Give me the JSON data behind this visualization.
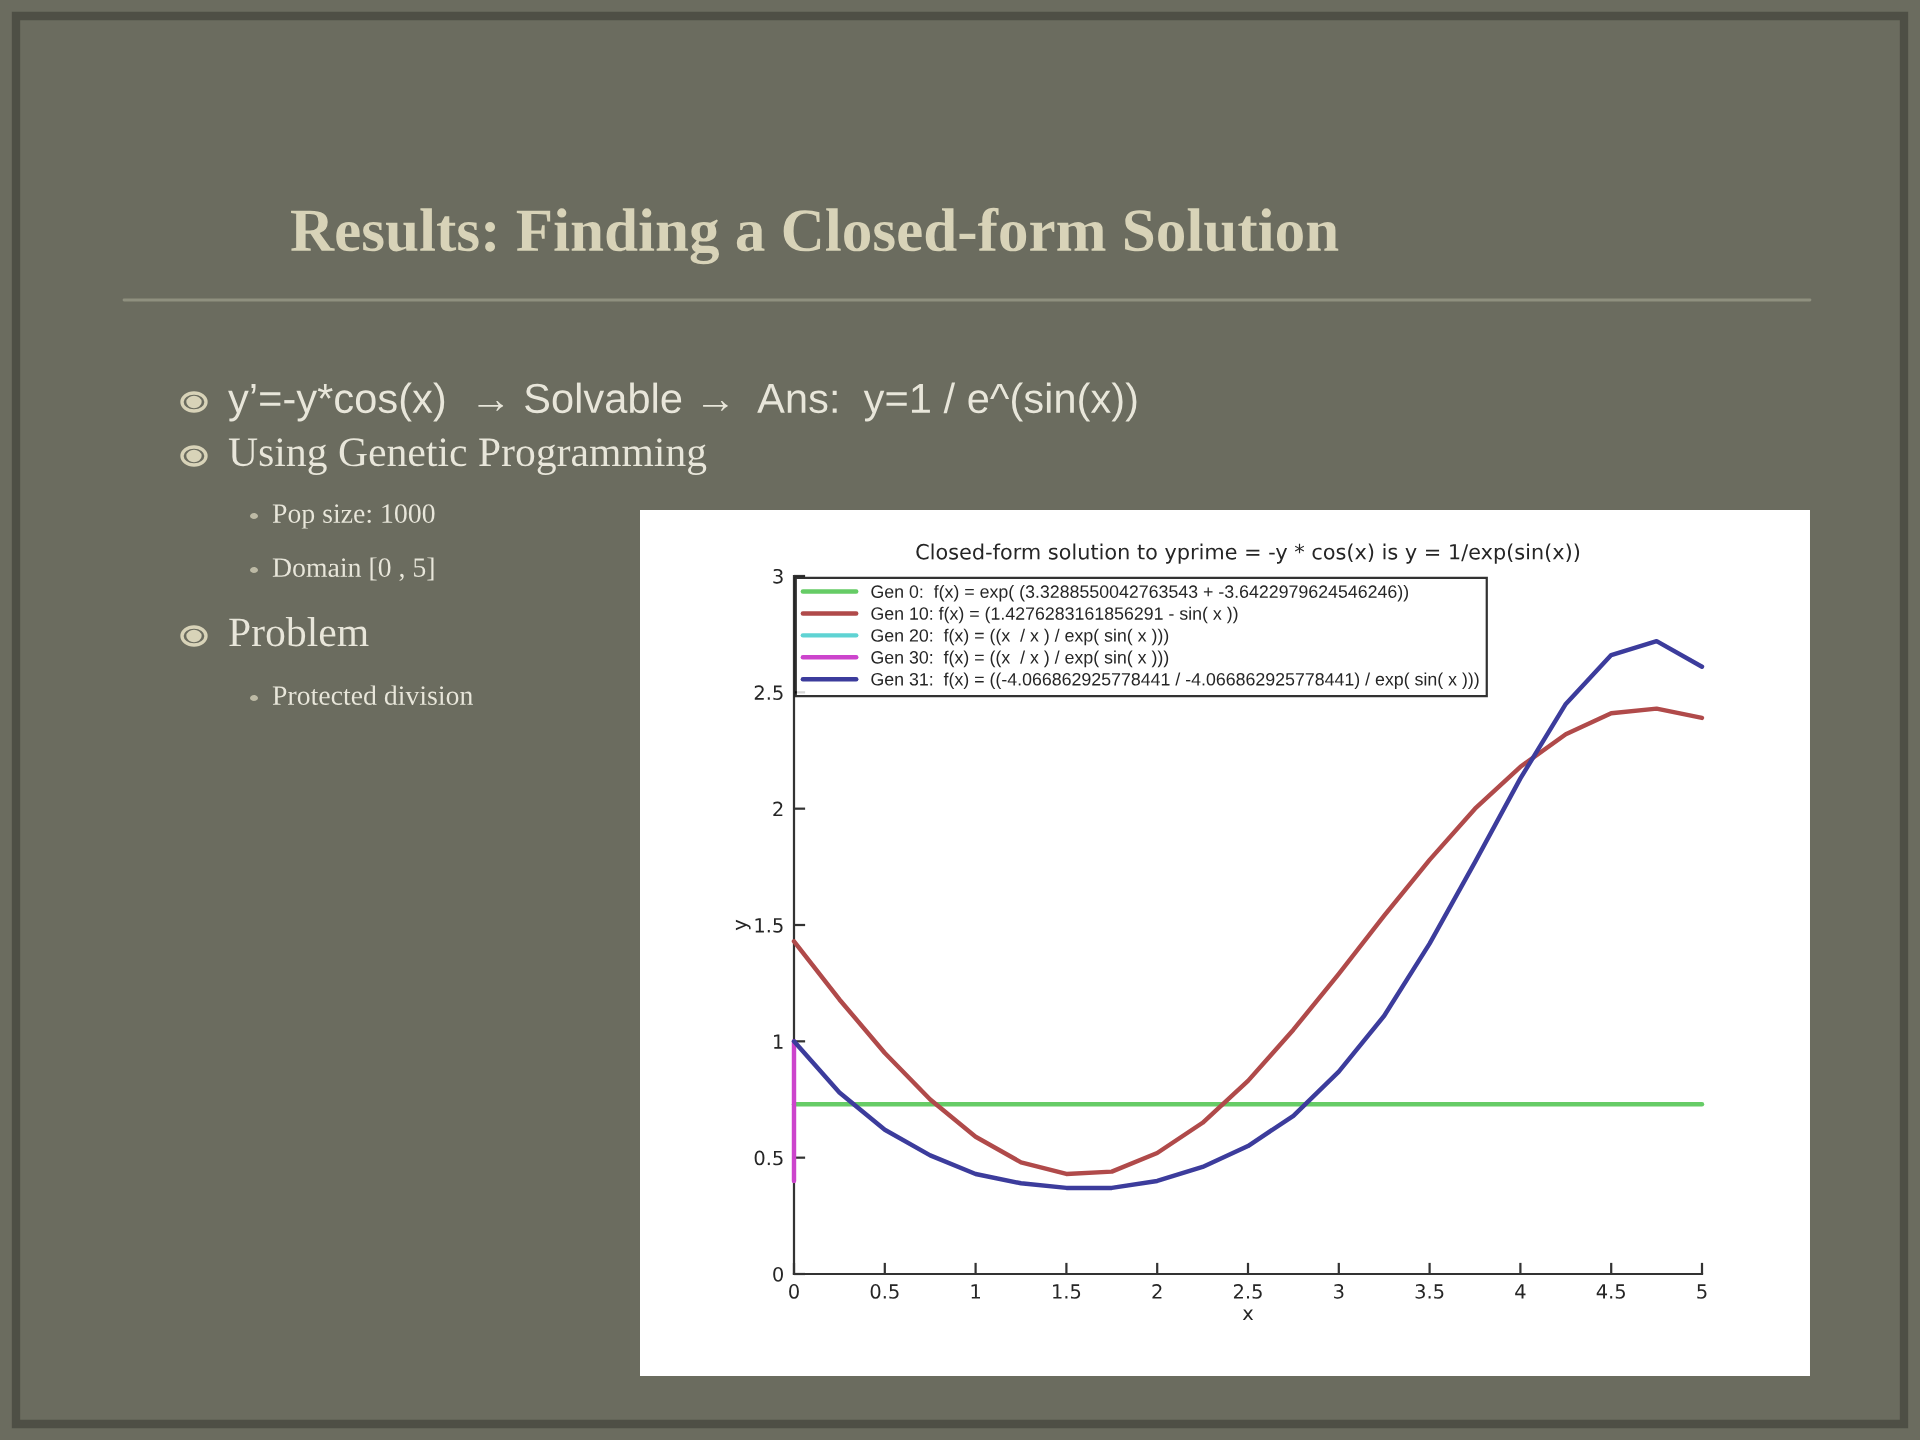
{
  "chart_data": {
    "type": "line",
    "title": "Closed-form solution to yprime = -y * cos(x) is y = 1/exp(sin(x))",
    "xlabel": "x",
    "ylabel": "y",
    "annotations": [
      "Results: Finding a Closed-form Solution",
      "y’=-y*cos(x)  → Solvable →  Ans:  y=1 / e^(sin(x))",
      "Using Genetic Programming",
      "Pop size: 1000",
      "Domain [0 , 5]",
      "Problem",
      "Protected division"
    ],
    "series": [
      {
        "name": "Gen 0:  f(x) = exp( (3.3288550042763543 + -3.6422979624546246))",
        "color": "#66cc66",
        "x": [
          0,
          5
        ],
        "values": [
          0.73,
          0.73
        ]
      },
      {
        "name": "Gen 10: f(x) = (1.4276283161856291 - sin( x ))",
        "color": "#b04a4a",
        "x": [
          0,
          0.25,
          0.5,
          0.75,
          1,
          1.25,
          1.5,
          1.75,
          2,
          2.25,
          2.5,
          2.75,
          3,
          3.25,
          3.5,
          3.75,
          4,
          4.25,
          4.5,
          4.75,
          5
        ],
        "values": [
          1.43,
          1.18,
          0.95,
          0.75,
          0.59,
          0.48,
          0.43,
          0.44,
          0.52,
          0.65,
          0.83,
          1.05,
          1.29,
          1.54,
          1.78,
          2.0,
          2.18,
          2.32,
          2.41,
          2.43,
          2.39
        ]
      },
      {
        "name": "Gen 20:  f(x) = ((x  / x ) / exp( sin( x )))",
        "color": "#5fd3d3"
      },
      {
        "name": "Gen 30:  f(x) = ((x  / x ) / exp( sin( x )))",
        "color": "#cc44cc",
        "x": [
          0,
          0
        ],
        "values": [
          0.4,
          1.0
        ]
      },
      {
        "name": "Gen 31:  f(x) = ((-4.066862925778441 / -4.066862925778441) / exp( sin( x )))",
        "color": "#3c3c9c",
        "x": [
          0,
          0.25,
          0.5,
          0.75,
          1,
          1.25,
          1.5,
          1.75,
          2,
          2.25,
          2.5,
          2.75,
          3,
          3.25,
          3.5,
          3.75,
          4,
          4.25,
          4.5,
          4.75,
          5
        ],
        "values": [
          1.0,
          0.78,
          0.62,
          0.51,
          0.43,
          0.39,
          0.37,
          0.37,
          0.4,
          0.46,
          0.55,
          0.68,
          0.87,
          1.11,
          1.42,
          1.77,
          2.13,
          2.45,
          2.66,
          2.72,
          2.61
        ]
      }
    ],
    "xlim": [
      0,
      5
    ],
    "xticks": [
      0,
      0.5,
      1,
      1.5,
      2,
      2.5,
      3,
      3.5,
      4,
      4.5,
      5
    ],
    "ylim": [
      0,
      3
    ],
    "yticks": [
      0,
      0.5,
      1,
      1.5,
      2,
      2.5,
      3
    ],
    "legend": "top left",
    "grid": false
  }
}
